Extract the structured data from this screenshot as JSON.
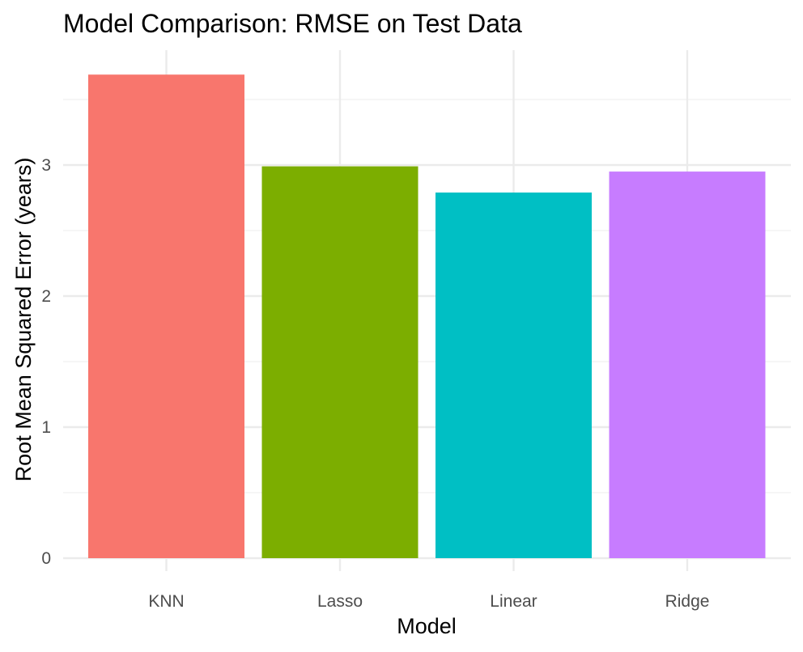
{
  "chart_data": {
    "type": "bar",
    "title": "Model Comparison: RMSE on Test Data",
    "xlabel": "Model",
    "ylabel": "Root Mean Squared Error (years)",
    "categories": [
      "KNN",
      "Lasso",
      "Linear",
      "Ridge"
    ],
    "values": [
      3.69,
      2.99,
      2.79,
      2.95
    ],
    "colors": [
      "#F8766D",
      "#7CAE00",
      "#00BFC4",
      "#C77CFF"
    ],
    "ylim": [
      0,
      3.88
    ],
    "yticks": [
      0,
      1,
      2,
      3
    ],
    "ytick_labels": [
      "0",
      "1",
      "2",
      "3"
    ],
    "grid": true,
    "legend": "none"
  }
}
